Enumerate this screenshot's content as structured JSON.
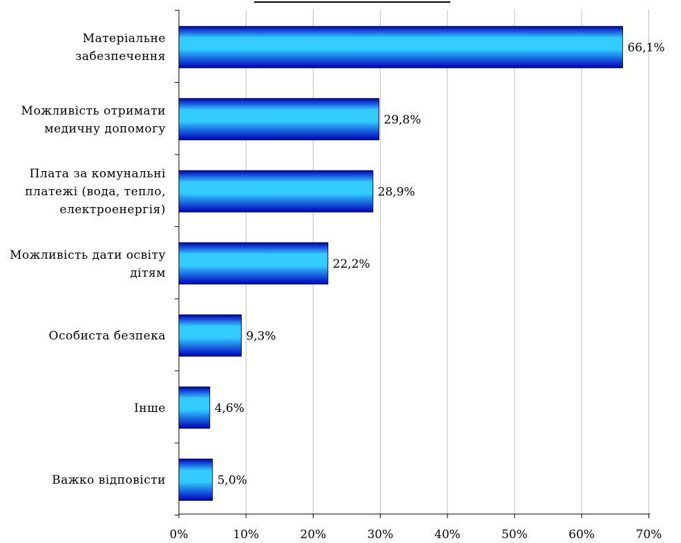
{
  "chart_data": {
    "type": "bar",
    "orientation": "horizontal",
    "categories": [
      [
        "Матеріальне",
        "забезпечення"
      ],
      [
        "Можливість отримати",
        "медичну допомогу"
      ],
      [
        "Плата за комунальні",
        "платежі (вода, тепло,",
        "електроенергія)"
      ],
      [
        "Можливість дати освіту",
        "дітям"
      ],
      [
        "Особиста безпека"
      ],
      [
        "Інше"
      ],
      [
        "Важко відповісти"
      ]
    ],
    "values": [
      66.1,
      29.8,
      28.9,
      22.2,
      9.3,
      4.6,
      5.0
    ],
    "value_labels": [
      "66,1%",
      "29,8%",
      "28,9%",
      "22,2%",
      "9,3%",
      "4,6%",
      "5,0%"
    ],
    "x_ticks": [
      "0%",
      "10%",
      "20%",
      "30%",
      "40%",
      "50%",
      "60%",
      "70%"
    ],
    "xlim": [
      0,
      70
    ],
    "grid": "vertical",
    "colors": {
      "bar_light": "#33ccff",
      "bar_dark": "#0000c0",
      "bar_edge": "#000033",
      "grid": "#c0c0c0",
      "axis": "#000000"
    }
  }
}
